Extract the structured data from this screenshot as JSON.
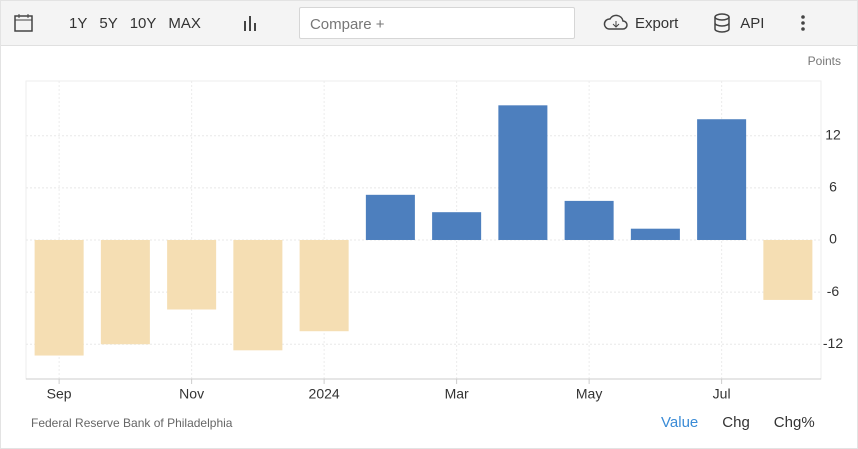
{
  "toolbar": {
    "ranges": [
      "1Y",
      "5Y",
      "10Y",
      "MAX"
    ],
    "compare": "Compare +",
    "export": "Export",
    "api": "API"
  },
  "chart_data": {
    "type": "bar",
    "unit": "Points",
    "categories": [
      "Sep",
      null,
      "Nov",
      null,
      "2024",
      null,
      "Mar",
      null,
      "May",
      null,
      "Jul",
      null
    ],
    "values": [
      -13.3,
      -12.0,
      -8.0,
      -12.7,
      -10.5,
      5.2,
      3.2,
      15.5,
      4.5,
      1.3,
      13.9,
      -6.9
    ],
    "color": "#4d7fbe",
    "negative_color": "#f5deb3",
    "ylim": [
      -16,
      18.3
    ],
    "yticks": [
      12,
      6,
      0,
      -6,
      -12
    ],
    "grid": true
  },
  "footer": {
    "source": "Federal Reserve Bank of Philadelphia",
    "tabs": [
      "Value",
      "Chg",
      "Chg%"
    ]
  }
}
